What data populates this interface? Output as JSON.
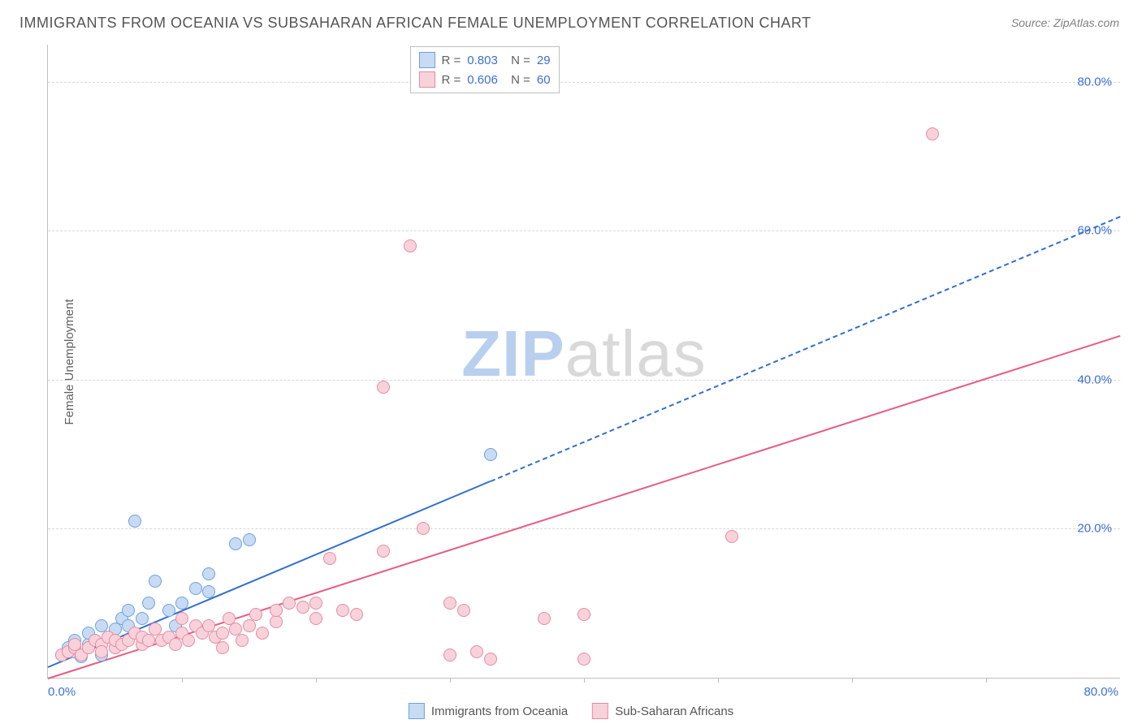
{
  "title": "IMMIGRANTS FROM OCEANIA VS SUBSAHARAN AFRICAN FEMALE UNEMPLOYMENT CORRELATION CHART",
  "source": "Source: ZipAtlas.com",
  "ylabel": "Female Unemployment",
  "watermark_a": "ZIP",
  "watermark_b": "atlas",
  "chart": {
    "type": "scatter",
    "xlim": [
      0,
      80
    ],
    "ylim": [
      0,
      85
    ],
    "ytick_labels": [
      "20.0%",
      "40.0%",
      "60.0%",
      "80.0%"
    ],
    "ytick_values": [
      20,
      40,
      60,
      80
    ],
    "xtick_values": [
      10,
      20,
      30,
      40,
      50,
      60,
      70
    ],
    "x_origin_label": "0.0%",
    "x_max_label": "80.0%",
    "background_color": "#ffffff",
    "grid_color": "#d8d8d8",
    "series": [
      {
        "name": "Immigrants from Oceania",
        "marker_fill": "#c7dbf3",
        "marker_stroke": "#6fa0df",
        "marker_radius": 7,
        "line_color": "#2f6fd0",
        "line_width": 2,
        "trend": {
          "x0": 0,
          "y0": 1.5,
          "x1": 80,
          "y1": 62,
          "solid_until_x": 33
        },
        "R": "0.803",
        "N": "29",
        "points": [
          [
            1,
            3
          ],
          [
            1.5,
            4
          ],
          [
            2,
            3.5
          ],
          [
            2,
            5
          ],
          [
            2.5,
            2.8
          ],
          [
            3,
            4.5
          ],
          [
            3,
            6
          ],
          [
            3.5,
            5
          ],
          [
            4,
            3
          ],
          [
            4,
            7
          ],
          [
            4.5,
            5.5
          ],
          [
            5,
            6.5
          ],
          [
            5,
            4
          ],
          [
            5.5,
            8
          ],
          [
            6,
            7
          ],
          [
            6,
            9
          ],
          [
            6.5,
            21
          ],
          [
            7,
            8
          ],
          [
            7.5,
            10
          ],
          [
            8,
            13
          ],
          [
            9,
            9
          ],
          [
            9.5,
            7
          ],
          [
            10,
            10
          ],
          [
            11,
            12
          ],
          [
            12,
            14
          ],
          [
            12,
            11.5
          ],
          [
            14,
            18
          ],
          [
            15,
            18.5
          ],
          [
            33,
            30
          ]
        ]
      },
      {
        "name": "Sub-Saharan Africans",
        "marker_fill": "#f8d2db",
        "marker_stroke": "#e78aa2",
        "marker_radius": 7,
        "line_color": "#e85b82",
        "line_width": 2,
        "trend": {
          "x0": 0,
          "y0": 0,
          "x1": 80,
          "y1": 46,
          "solid_until_x": 80
        },
        "R": "0.606",
        "N": "60",
        "points": [
          [
            1,
            3
          ],
          [
            1.5,
            3.5
          ],
          [
            2,
            4
          ],
          [
            2,
            4.5
          ],
          [
            2.5,
            3
          ],
          [
            3,
            4
          ],
          [
            3.5,
            5
          ],
          [
            4,
            4.5
          ],
          [
            4,
            3.5
          ],
          [
            4.5,
            5.5
          ],
          [
            5,
            4
          ],
          [
            5,
            5
          ],
          [
            5.5,
            4.5
          ],
          [
            6,
            5
          ],
          [
            6.5,
            6
          ],
          [
            7,
            4.5
          ],
          [
            7,
            5.5
          ],
          [
            7.5,
            5
          ],
          [
            8,
            6.5
          ],
          [
            8.5,
            5
          ],
          [
            9,
            5.5
          ],
          [
            9.5,
            4.5
          ],
          [
            10,
            6
          ],
          [
            10,
            8
          ],
          [
            10.5,
            5
          ],
          [
            11,
            7
          ],
          [
            11.5,
            6
          ],
          [
            12,
            7
          ],
          [
            12.5,
            5.5
          ],
          [
            13,
            4
          ],
          [
            13,
            6
          ],
          [
            13.5,
            8
          ],
          [
            14,
            6.5
          ],
          [
            14.5,
            5
          ],
          [
            15,
            7
          ],
          [
            15.5,
            8.5
          ],
          [
            16,
            6
          ],
          [
            17,
            7.5
          ],
          [
            17,
            9
          ],
          [
            18,
            10
          ],
          [
            19,
            9.5
          ],
          [
            20,
            10
          ],
          [
            20,
            8
          ],
          [
            21,
            16
          ],
          [
            22,
            9
          ],
          [
            23,
            8.5
          ],
          [
            25,
            17
          ],
          [
            25,
            39
          ],
          [
            27,
            58
          ],
          [
            28,
            20
          ],
          [
            30,
            3
          ],
          [
            30,
            10
          ],
          [
            31,
            9
          ],
          [
            32,
            3.5
          ],
          [
            33,
            2.5
          ],
          [
            37,
            8
          ],
          [
            40,
            2.5
          ],
          [
            40,
            8.5
          ],
          [
            51,
            19
          ],
          [
            66,
            73
          ]
        ]
      }
    ]
  },
  "legend_top": {
    "r_prefix": "R =",
    "n_prefix": "N ="
  },
  "legend_bottom": {
    "items": [
      "Immigrants from Oceania",
      "Sub-Saharan Africans"
    ]
  }
}
